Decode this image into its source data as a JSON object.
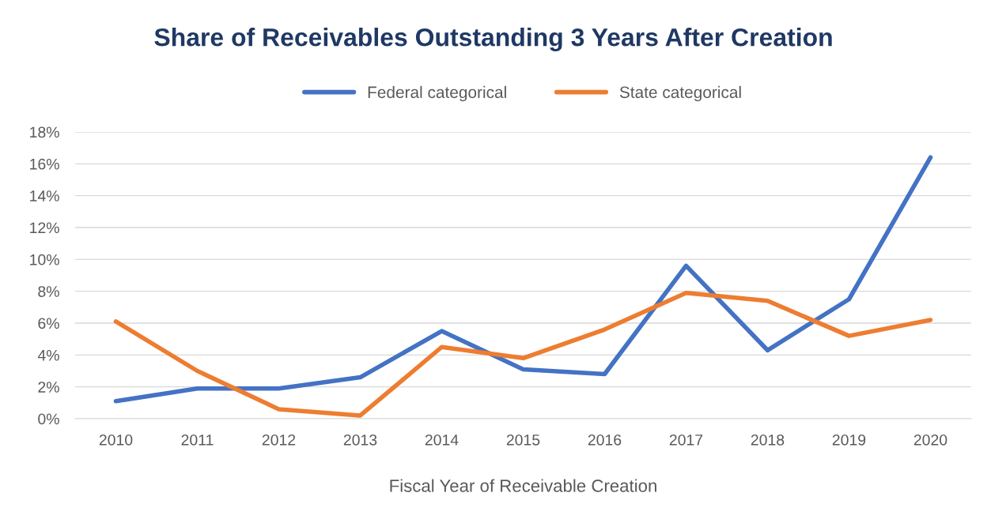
{
  "chart_data": {
    "type": "line",
    "title": "Share of Receivables Outstanding 3 Years After Creation",
    "xlabel": "Fiscal Year of Receivable Creation",
    "categories": [
      "2010",
      "2011",
      "2012",
      "2013",
      "2014",
      "2015",
      "2016",
      "2017",
      "2018",
      "2019",
      "2020"
    ],
    "series": [
      {
        "name": "Federal categorical",
        "color": "#4472c4",
        "values": [
          1.1,
          1.9,
          1.9,
          2.6,
          5.5,
          3.1,
          2.8,
          9.6,
          4.3,
          7.5,
          16.4
        ]
      },
      {
        "name": "State categorical",
        "color": "#ed7d31",
        "values": [
          6.1,
          3.0,
          0.6,
          0.2,
          4.5,
          3.8,
          5.6,
          7.9,
          7.4,
          5.2,
          6.2
        ]
      }
    ],
    "ylim": [
      0,
      18
    ],
    "yticks": [
      {
        "value": 0,
        "label": "0%"
      },
      {
        "value": 2,
        "label": "2%"
      },
      {
        "value": 4,
        "label": "4%"
      },
      {
        "value": 6,
        "label": "6%"
      },
      {
        "value": 8,
        "label": "8%"
      },
      {
        "value": 10,
        "label": "10%"
      },
      {
        "value": 12,
        "label": "12%"
      },
      {
        "value": 14,
        "label": "14%"
      },
      {
        "value": 16,
        "label": "16%"
      },
      {
        "value": 18,
        "label": "18%"
      }
    ],
    "grid": "y",
    "legend": "top",
    "marker": "none",
    "line_style": "solid"
  }
}
